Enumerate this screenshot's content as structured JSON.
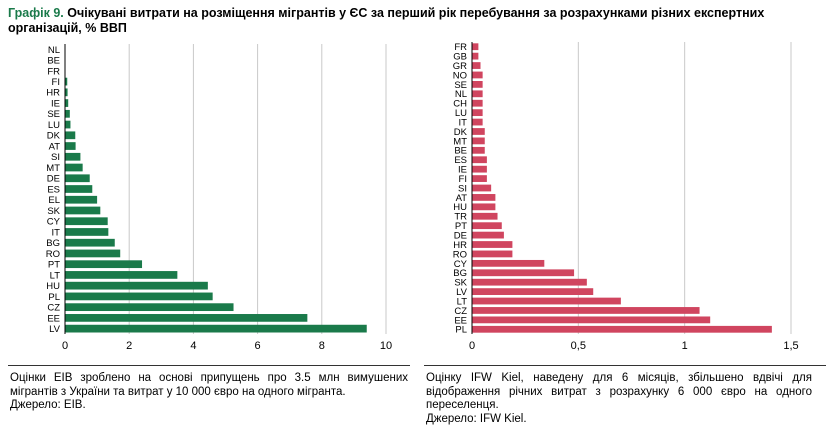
{
  "figure": {
    "title_lead": "Графік 9.",
    "title_text": "Очікувані витрати на розміщення мігрантів у ЄС за перший рік перебування за розрахунками різних експертних організацій, % ВВП"
  },
  "chart_data": [
    {
      "type": "bar",
      "orientation": "horizontal",
      "title": "",
      "xlabel": "",
      "ylabel": "",
      "xlim": [
        0,
        10
      ],
      "xticks": [
        0,
        2,
        4,
        6,
        8,
        10
      ],
      "xtick_labels": [
        "0",
        "2",
        "4",
        "6",
        "8",
        "10"
      ],
      "grid": "vertical",
      "color": "#1a7a4a",
      "categories": [
        "NL",
        "BE",
        "FR",
        "FI",
        "HR",
        "IE",
        "SE",
        "LU",
        "DK",
        "AT",
        "SI",
        "MT",
        "DE",
        "ES",
        "EL",
        "SK",
        "CY",
        "IT",
        "BG",
        "RO",
        "PT",
        "LT",
        "HU",
        "PL",
        "CZ",
        "EE",
        "LV"
      ],
      "values": [
        0.0,
        0.0,
        0.0,
        0.07,
        0.08,
        0.1,
        0.15,
        0.17,
        0.32,
        0.33,
        0.48,
        0.55,
        0.77,
        0.85,
        1.0,
        1.1,
        1.33,
        1.35,
        1.55,
        1.72,
        2.4,
        3.5,
        4.45,
        4.6,
        5.25,
        7.55,
        9.4
      ]
    },
    {
      "type": "bar",
      "orientation": "horizontal",
      "title": "",
      "xlabel": "",
      "ylabel": "",
      "xlim": [
        0,
        1.5
      ],
      "xticks": [
        0,
        0.5,
        1,
        1.5
      ],
      "xtick_labels": [
        "0",
        "0,5",
        "1",
        "1,5"
      ],
      "grid": "vertical",
      "color": "#d0455f",
      "categories": [
        "FR",
        "GB",
        "GR",
        "NO",
        "SE",
        "NL",
        "CH",
        "LU",
        "IT",
        "DK",
        "MT",
        "BE",
        "ES",
        "IE",
        "FI",
        "SI",
        "AT",
        "HU",
        "TR",
        "PT",
        "DE",
        "HR",
        "RO",
        "CY",
        "BG",
        "SK",
        "LV",
        "LT",
        "CZ",
        "EE",
        "PL"
      ],
      "values": [
        0.03,
        0.03,
        0.04,
        0.05,
        0.05,
        0.05,
        0.05,
        0.05,
        0.05,
        0.06,
        0.06,
        0.06,
        0.07,
        0.07,
        0.07,
        0.09,
        0.11,
        0.11,
        0.12,
        0.14,
        0.15,
        0.19,
        0.19,
        0.34,
        0.48,
        0.54,
        0.57,
        0.7,
        1.07,
        1.12,
        1.41
      ]
    }
  ],
  "notes": {
    "left": {
      "text": "Оцінки EIB зроблено на основі припущень про 3.5 млн вимушених мігрантів з України та витрат у 10 000 євро на одного мігранта.",
      "source": "Джерело: EIB."
    },
    "right": {
      "text": "Оцінку IFW Kiel, наведену для 6 місяців, збільшено вдвічі для відображення річних витрат з розрахунку 6 000 євро на одного переселенця.",
      "source": "Джерело: IFW Kiel."
    }
  }
}
